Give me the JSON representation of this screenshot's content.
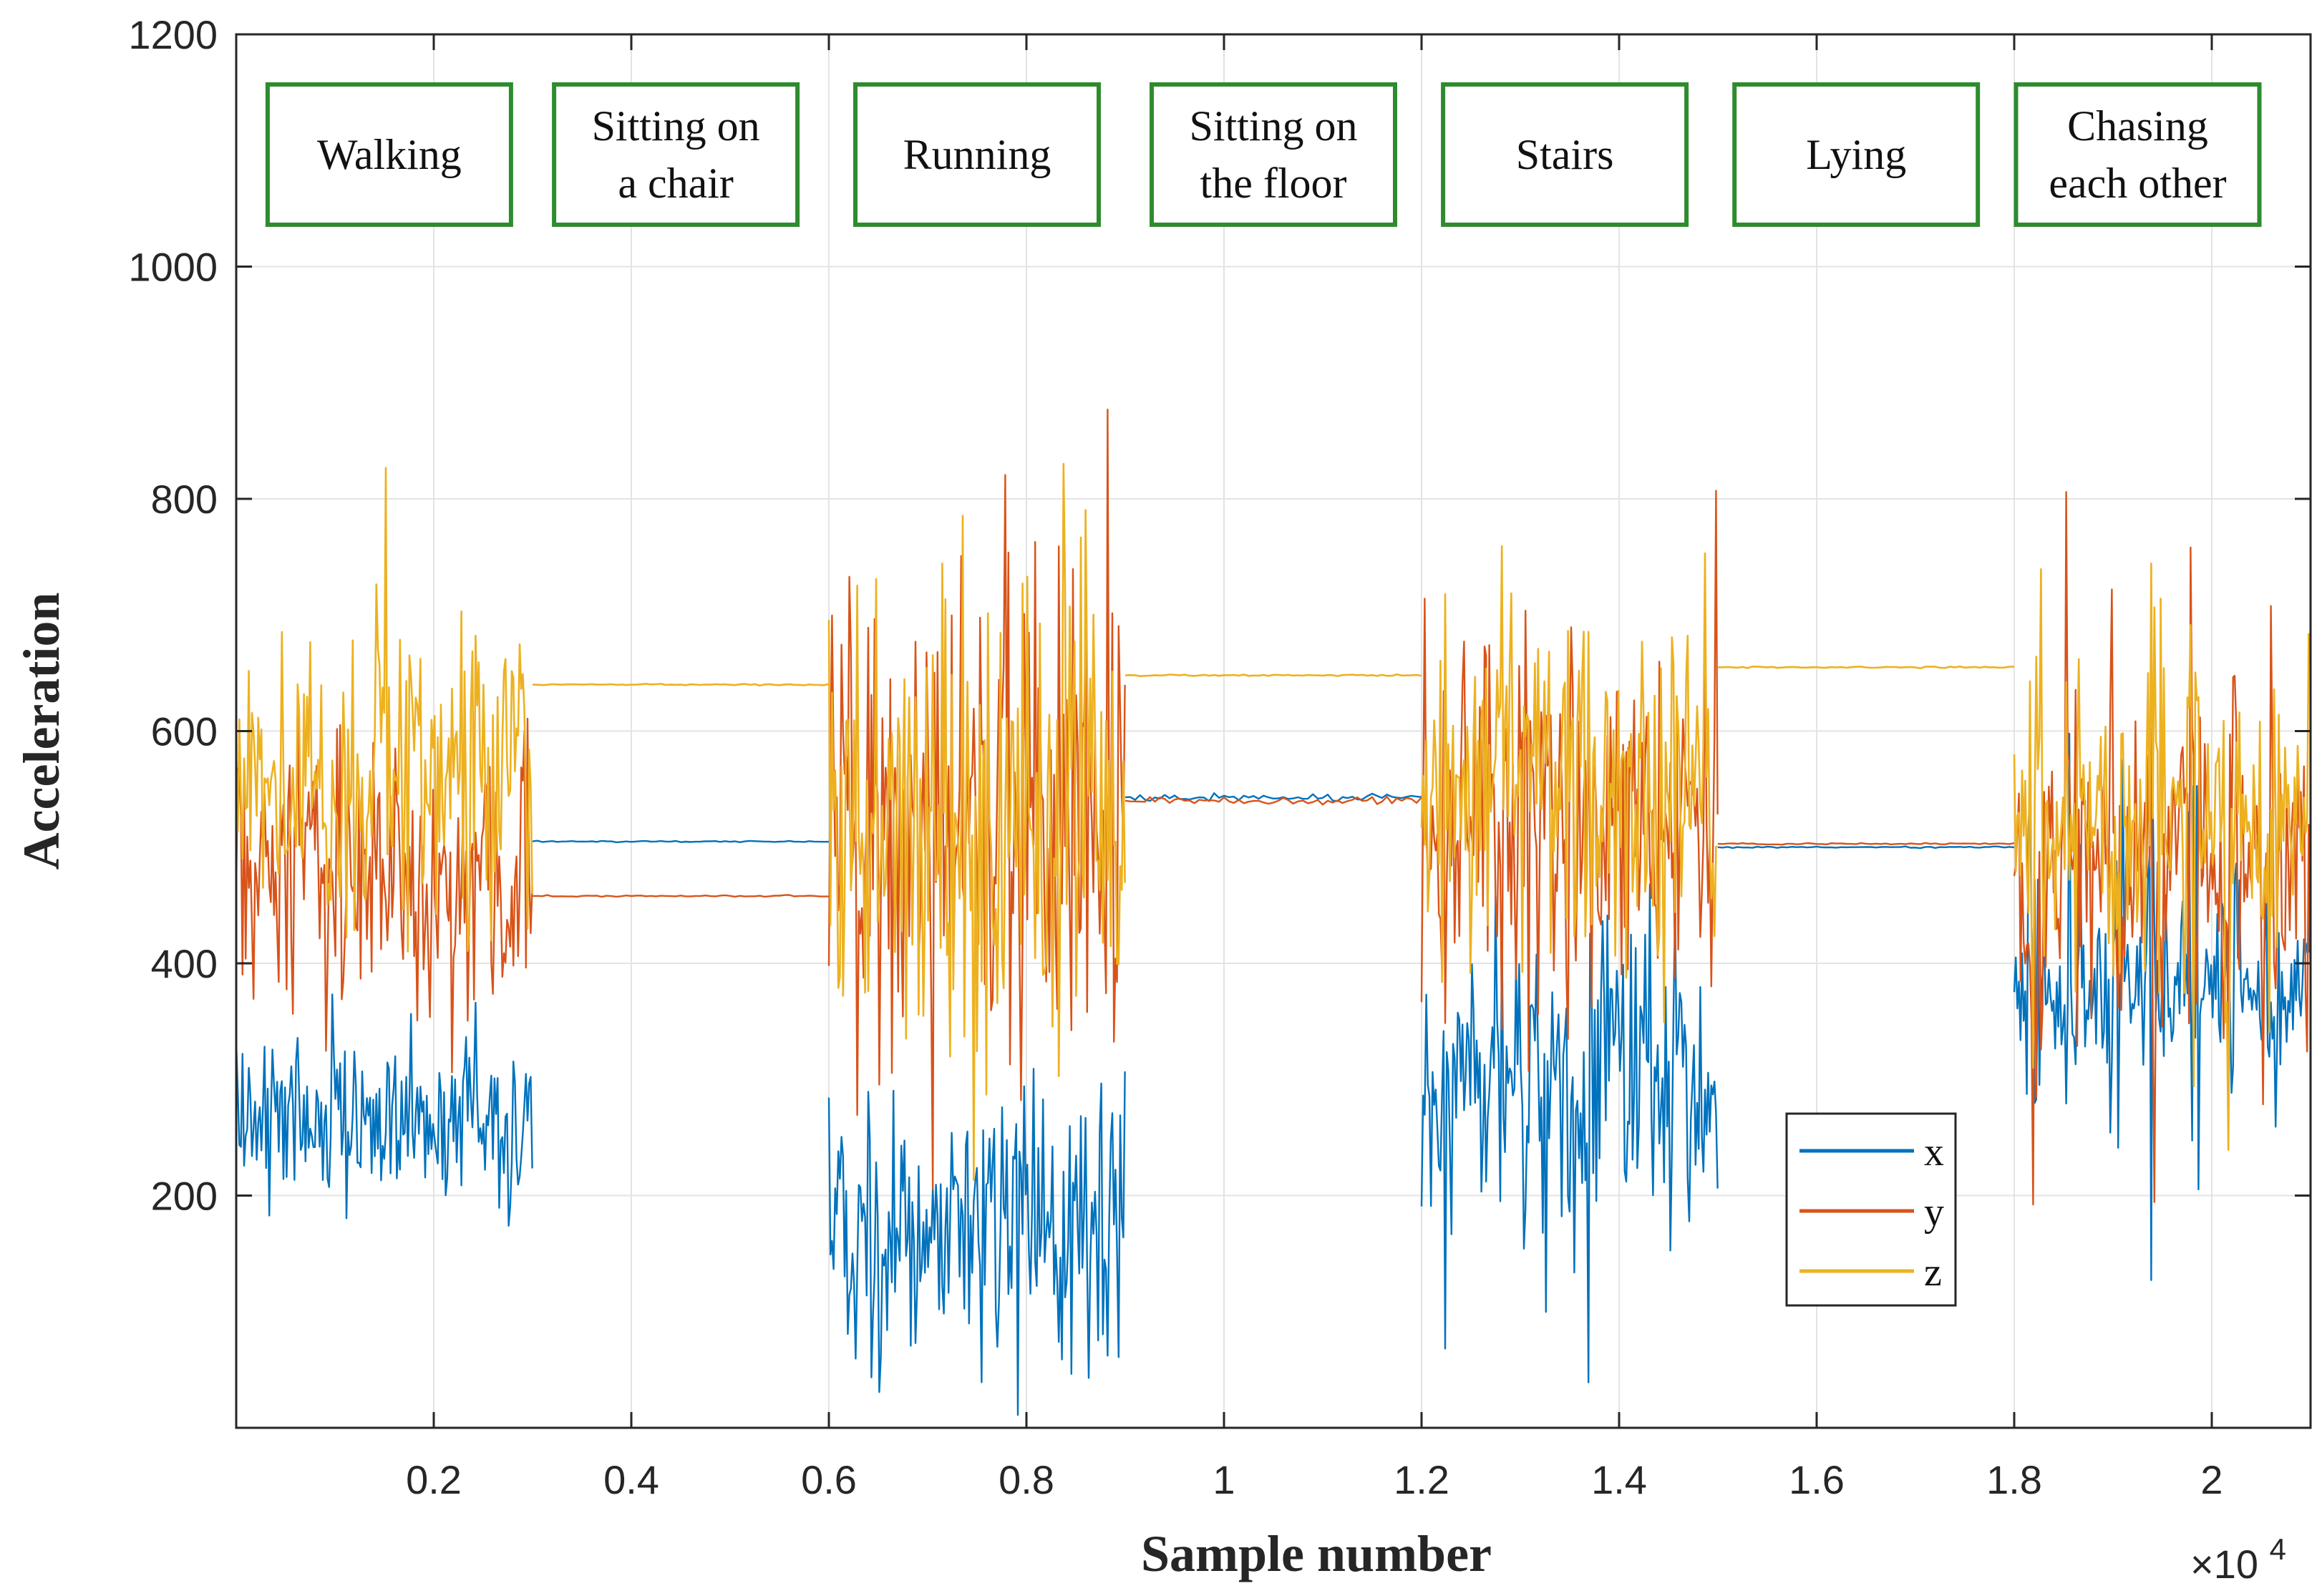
{
  "chart_data": {
    "type": "line",
    "title": "",
    "xlabel": "Sample number",
    "ylabel": "Acceleration",
    "x_exponent_label": "×10",
    "x_exponent_power": "4",
    "xlim": [
      0,
      21000
    ],
    "ylim": [
      0,
      1200
    ],
    "x_ticks": [
      2000,
      4000,
      6000,
      8000,
      10000,
      12000,
      14000,
      16000,
      18000,
      20000
    ],
    "x_tick_labels": [
      "0.2",
      "0.4",
      "0.6",
      "0.8",
      "1",
      "1.2",
      "1.4",
      "1.6",
      "1.8",
      "2"
    ],
    "y_ticks": [
      200,
      400,
      600,
      800,
      1000,
      1200
    ],
    "y_tick_labels": [
      "200",
      "400",
      "600",
      "800",
      "1000",
      "1200"
    ],
    "grid": true,
    "legend": {
      "position": "bottom-right",
      "entries": [
        {
          "label": "x",
          "color": "#0072BD"
        },
        {
          "label": "y",
          "color": "#D95319"
        },
        {
          "label": "z",
          "color": "#EDB120"
        }
      ]
    },
    "activities": [
      {
        "lines": [
          "Walking"
        ],
        "x_center": 1550
      },
      {
        "lines": [
          "Sitting on",
          "a chair"
        ],
        "x_center": 4450
      },
      {
        "lines": [
          "Running"
        ],
        "x_center": 7500
      },
      {
        "lines": [
          "Sitting on",
          "the floor"
        ],
        "x_center": 10500
      },
      {
        "lines": [
          "Stairs"
        ],
        "x_center": 13450
      },
      {
        "lines": [
          "Lying"
        ],
        "x_center": 16400
      },
      {
        "lines": [
          "Chasing",
          "each other"
        ],
        "x_center": 19250
      }
    ],
    "activity_box_color": "#2E8B2E",
    "segments": [
      {
        "name": "Walking",
        "x_range": [
          0,
          3000
        ],
        "type": "noise",
        "x": {
          "center": 270,
          "amplitude": 120
        },
        "y": {
          "center": 470,
          "amplitude": 170
        },
        "z": {
          "center": 560,
          "amplitude": 200
        }
      },
      {
        "name": "Sitting on a chair",
        "x_range": [
          3000,
          6000
        ],
        "type": "flat",
        "x": 505,
        "y": 458,
        "z": 640
      },
      {
        "name": "Running",
        "x_range": [
          6000,
          9000
        ],
        "type": "noise",
        "x": {
          "center": 170,
          "amplitude": 160
        },
        "y": {
          "center": 520,
          "amplitude": 320
        },
        "z": {
          "center": 520,
          "amplitude": 300
        }
      },
      {
        "name": "Sitting on the floor",
        "x_range": [
          9000,
          12000
        ],
        "type": "flat",
        "x": 543,
        "y": 540,
        "z": 648
      },
      {
        "name": "Stairs",
        "x_range": [
          12000,
          15000
        ],
        "type": "noise",
        "x": {
          "center": 300,
          "amplitude": 180
        },
        "y": {
          "center": 520,
          "amplitude": 220
        },
        "z": {
          "center": 560,
          "amplitude": 230
        }
      },
      {
        "name": "Lying",
        "x_range": [
          15000,
          18000
        ],
        "type": "flat",
        "x": 500,
        "y": 503,
        "z": 655
      },
      {
        "name": "Chasing each other",
        "x_range": [
          18000,
          21000
        ],
        "type": "bursty",
        "x": {
          "center": 380,
          "amplitude": 220
        },
        "y": {
          "center": 480,
          "amplitude": 300
        },
        "z": {
          "center": 520,
          "amplitude": 280
        }
      }
    ]
  }
}
